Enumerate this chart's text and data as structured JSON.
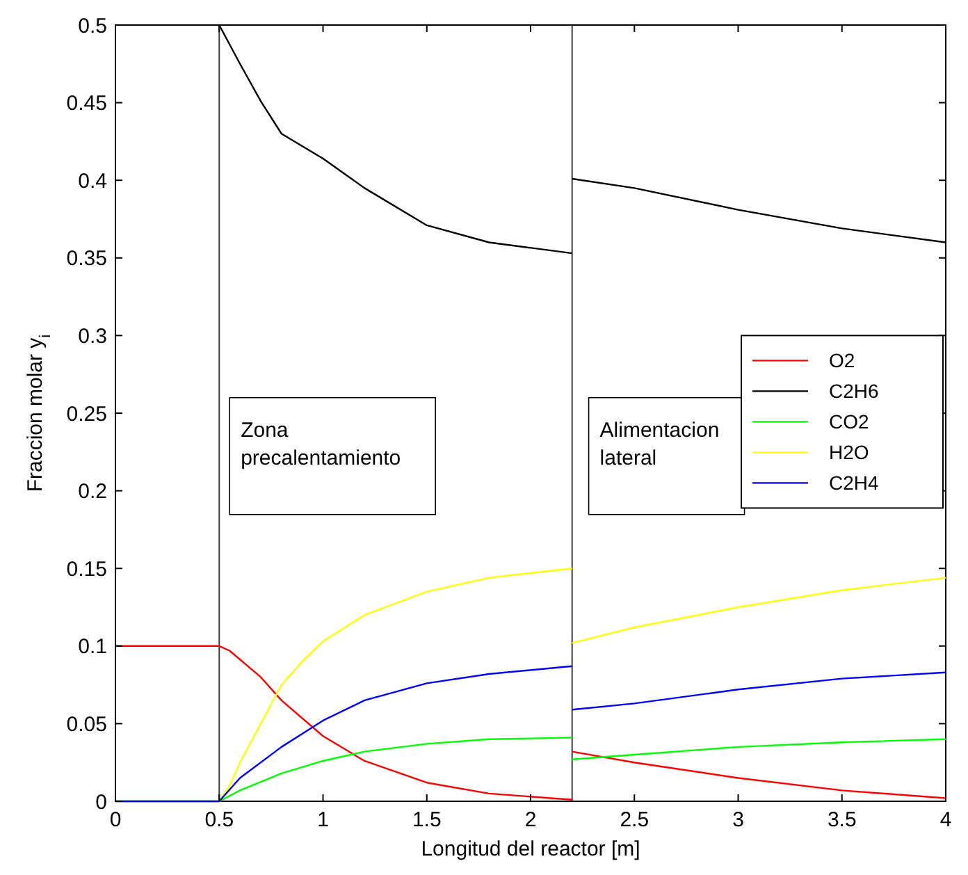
{
  "chart_data": {
    "type": "line",
    "xlabel": "Longitud del reactor [m]",
    "ylabel": "Fraccion molar y$_{i}$",
    "xlim": [
      0,
      4
    ],
    "xticks": [
      0,
      0.5,
      1,
      1.5,
      2,
      2.5,
      3,
      3.5,
      4
    ],
    "ylim": [
      0,
      0.5
    ],
    "yticks": [
      0,
      0.05,
      0.1,
      0.15,
      0.2,
      0.25,
      0.3,
      0.35,
      0.4,
      0.45,
      0.5
    ],
    "legend": "right",
    "grid": false,
    "line_style": "solid",
    "marker": "none",
    "ref_lines": [
      {
        "axis": "x",
        "value": 0.5,
        "color": "#404040"
      },
      {
        "axis": "x",
        "value": 2.2,
        "color": "#404040"
      }
    ],
    "annotations": [
      "Zona precalentamiento",
      "Alimentacion lateral"
    ],
    "series": [
      {
        "name": "O2",
        "color": "#ff0000",
        "x": [
          0,
          0.5,
          0.55,
          0.7,
          0.8,
          1.0,
          1.2,
          1.5,
          1.8,
          2.2,
          null,
          2.2,
          2.5,
          3,
          3.5,
          4
        ],
        "values": [
          0.1,
          0.1,
          0.097,
          0.08,
          0.065,
          0.042,
          0.026,
          0.012,
          0.005,
          0.001,
          null,
          0.032,
          0.025,
          0.015,
          0.007,
          0.002
        ]
      },
      {
        "name": "C2H6",
        "color": "#000000",
        "x": [
          0.5,
          0.6,
          0.7,
          0.8,
          1.0,
          1.2,
          1.5,
          1.8,
          2.2,
          null,
          2.2,
          2.5,
          3,
          3.5,
          4
        ],
        "values": [
          0.5,
          0.475,
          0.451,
          0.43,
          0.414,
          0.395,
          0.371,
          0.36,
          0.353,
          null,
          0.401,
          0.395,
          0.381,
          0.369,
          0.36
        ]
      },
      {
        "name": "CO2",
        "color": "#00ff00",
        "x": [
          0,
          0.5,
          0.6,
          0.8,
          1.0,
          1.2,
          1.5,
          1.8,
          2.2,
          null,
          2.2,
          2.5,
          3,
          3.5,
          4
        ],
        "values": [
          0,
          0,
          0.007,
          0.018,
          0.026,
          0.032,
          0.037,
          0.04,
          0.041,
          null,
          0.027,
          0.03,
          0.035,
          0.038,
          0.04
        ]
      },
      {
        "name": "H2O",
        "color": "#ffff00",
        "x": [
          0,
          0.5,
          0.55,
          0.6,
          0.7,
          0.8,
          0.9,
          1.0,
          1.2,
          1.5,
          1.8,
          2.2,
          null,
          2.2,
          2.5,
          3,
          3.5,
          4
        ],
        "values": [
          0,
          0,
          0.01,
          0.025,
          0.05,
          0.075,
          0.09,
          0.103,
          0.12,
          0.135,
          0.144,
          0.15,
          null,
          0.102,
          0.112,
          0.125,
          0.136,
          0.144
        ]
      },
      {
        "name": "C2H4",
        "color": "#0000ff",
        "x": [
          0,
          0.5,
          0.6,
          0.8,
          1.0,
          1.2,
          1.5,
          1.8,
          2.2,
          null,
          2.2,
          2.5,
          3,
          3.5,
          4
        ],
        "values": [
          0,
          0,
          0.015,
          0.035,
          0.052,
          0.065,
          0.076,
          0.082,
          0.087,
          null,
          0.059,
          0.063,
          0.072,
          0.079,
          0.083
        ]
      }
    ]
  }
}
